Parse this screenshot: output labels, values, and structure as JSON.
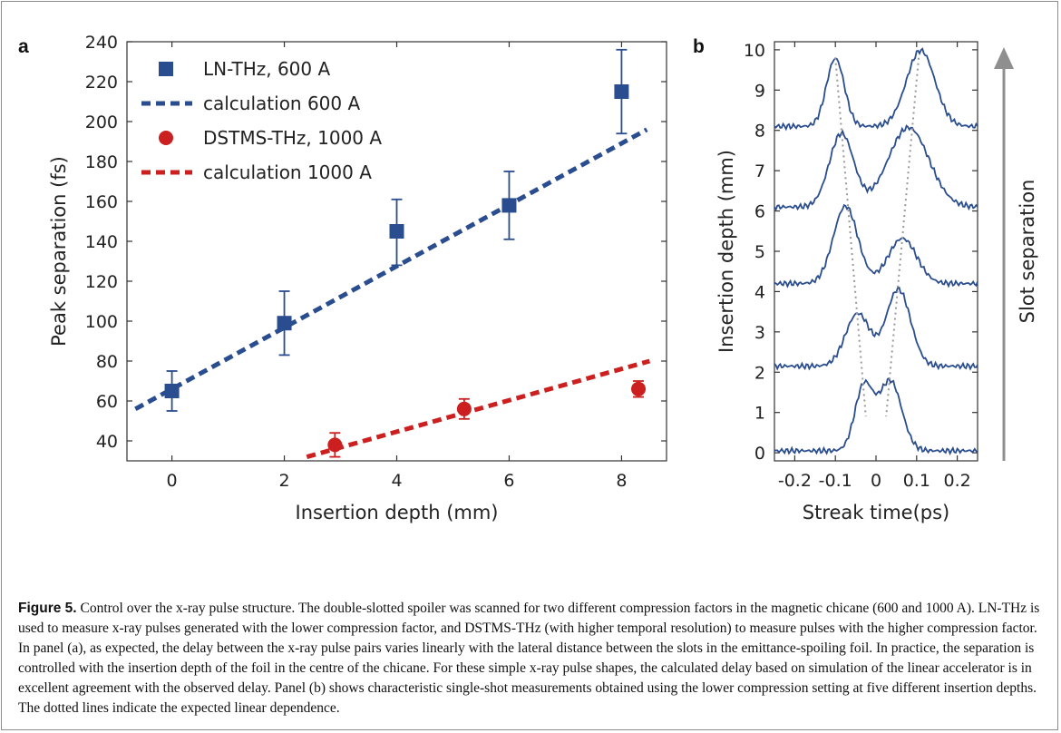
{
  "figure": {
    "panel_a_label": "a",
    "panel_b_label": "b",
    "caption_label": "Figure 5.",
    "caption_text": " Control over the x-ray pulse structure. The double-slotted spoiler was scanned for two different compression factors in the magnetic chicane (600 and 1000 A). LN-THz is used to measure x-ray pulses generated with the lower compression factor, and DSTMS-THz (with higher temporal resolution) to measure pulses with the higher compression factor. In panel (a), as expected, the delay between the x-ray pulse pairs varies linearly with the lateral distance between the slots in the emittance-spoiling foil. In practice, the separation is controlled with the insertion depth of the foil in the centre of the chicane. For these simple x-ray pulse shapes, the calculated delay based on simulation of the linear accelerator is in excellent agreement with the observed delay. Panel (b) shows characteristic single-shot measurements obtained using the lower compression setting at five different insertion depths. The dotted lines indicate the expected linear dependence."
  },
  "chart_data": [
    {
      "type": "scatter",
      "panel": "a",
      "xlabel": "Insertion depth (mm)",
      "ylabel": "Peak separation (fs)",
      "xlim": [
        -0.8,
        8.8
      ],
      "ylim": [
        30,
        240
      ],
      "xticks": [
        0,
        2,
        4,
        6,
        8
      ],
      "yticks": [
        40,
        60,
        80,
        100,
        120,
        140,
        160,
        180,
        200,
        220,
        240
      ],
      "grid": false,
      "legend_position": "top-left",
      "series": [
        {
          "name": "LN-THz, 600 A",
          "kind": "points",
          "marker": "square",
          "color": "#2a4d8f",
          "x": [
            0,
            2,
            4,
            6,
            8
          ],
          "y": [
            65,
            99,
            145,
            158,
            215
          ],
          "err_low": [
            10,
            16,
            17,
            17,
            21
          ],
          "err_high": [
            10,
            16,
            16,
            17,
            21
          ]
        },
        {
          "name": "calculation 600 A",
          "kind": "dashed-line",
          "color": "#2a4d8f",
          "x": [
            -0.65,
            8.45
          ],
          "y": [
            56,
            196
          ]
        },
        {
          "name": "DSTMS-THz, 1000 A",
          "kind": "points",
          "marker": "circle",
          "color": "#cc1f1f",
          "x": [
            2.9,
            5.2,
            8.3
          ],
          "y": [
            38,
            56,
            66
          ],
          "err_low": [
            6,
            5,
            4
          ],
          "err_high": [
            6,
            5,
            4
          ]
        },
        {
          "name": "calculation 1000 A",
          "kind": "dashed-line",
          "color": "#cc1f1f",
          "x": [
            2.4,
            8.5
          ],
          "y": [
            32,
            80
          ]
        }
      ]
    },
    {
      "type": "line",
      "panel": "b",
      "xlabel": "Streak time(ps)",
      "ylabel": "Insertion depth (mm)",
      "side_label": "Slot separation",
      "xlim": [
        -0.25,
        0.25
      ],
      "ylim": [
        -0.2,
        10.2
      ],
      "xticks": [
        -0.2,
        -0.1,
        0,
        0.1,
        0.2
      ],
      "xtick_labels": [
        "-0.2",
        "-0.1",
        "0",
        "0.1",
        "0.2"
      ],
      "yticks": [
        0,
        1,
        2,
        3,
        4,
        5,
        6,
        7,
        8,
        9,
        10
      ],
      "line_color": "#2a4d8f",
      "guide_color": "#999999",
      "traces": [
        {
          "offset": 0,
          "base": 0.0,
          "peaks": [
            [
              -0.03,
              1.6,
              0.022
            ],
            [
              0.035,
              1.75,
              0.028
            ]
          ],
          "floor": 0.05
        },
        {
          "offset": 2,
          "base": 2.0,
          "peaks": [
            [
              -0.045,
              1.35,
              0.03
            ],
            [
              0.055,
              1.95,
              0.03
            ]
          ],
          "floor": 0.15
        },
        {
          "offset": 4,
          "base": 4.1,
          "peaks": [
            [
              -0.075,
              1.95,
              0.03
            ],
            [
              0.065,
              1.15,
              0.035
            ]
          ],
          "floor": 0.1
        },
        {
          "offset": 6,
          "base": 6.0,
          "peaks": [
            [
              -0.085,
              1.85,
              0.03
            ],
            [
              0.08,
              2.0,
              0.05
            ]
          ],
          "floor": 0.1
        },
        {
          "offset": 8,
          "base": 8.05,
          "peaks": [
            [
              -0.1,
              1.7,
              0.022
            ],
            [
              0.11,
              1.9,
              0.035
            ]
          ],
          "floor": 0.05
        }
      ],
      "guides": [
        {
          "x": [
            -0.1,
            -0.025
          ],
          "y": [
            9.8,
            0.9
          ]
        },
        {
          "x": [
            0.105,
            0.025
          ],
          "y": [
            9.8,
            0.9
          ]
        }
      ]
    }
  ]
}
